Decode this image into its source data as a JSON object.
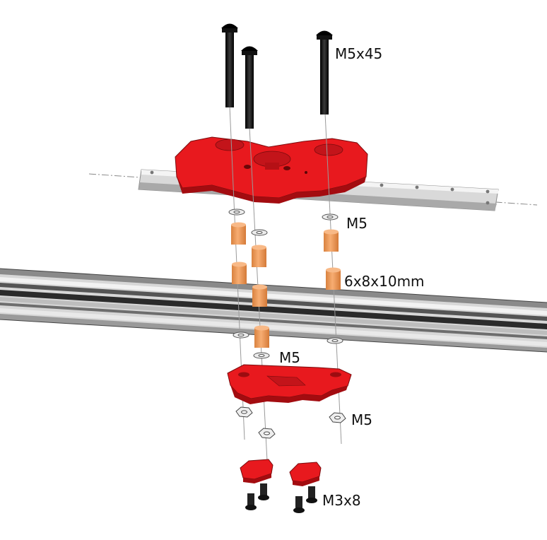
{
  "labels": {
    "bolt_long": "M5x45",
    "washer_top": "M5",
    "spacer": "6x8x10mm",
    "washer_bottom": "M5",
    "nut": "M5",
    "screw_small": "M3x8"
  },
  "colors": {
    "part_red": "#e8191e",
    "part_red_dark": "#a30c10",
    "spacer_orange": "#f4a062",
    "spacer_shade": "#d9823f",
    "rail_metal": "#c8c8c8",
    "extrusion_dark": "#3a3a3a",
    "bolt_black": "#111111",
    "washer_grey": "#e6e6e6"
  }
}
